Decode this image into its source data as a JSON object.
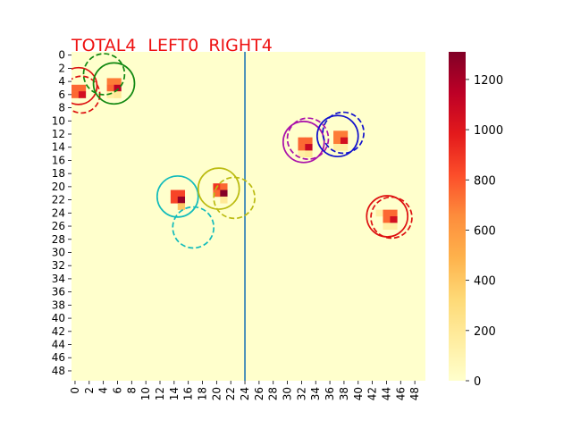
{
  "title": {
    "total": "TOTAL4",
    "left": "LEFT0",
    "right": "RIGHT4",
    "color": "#ee1111"
  },
  "chart_data": {
    "type": "heatmap",
    "grid_size": [
      50,
      50
    ],
    "colormap": "YlOrRd",
    "background_value": 0,
    "xlim": [
      0,
      49
    ],
    "ylim": [
      0,
      49
    ],
    "x_tick_labels": [
      "0",
      "2",
      "4",
      "6",
      "8",
      "10",
      "12",
      "14",
      "16",
      "18",
      "20",
      "22",
      "24",
      "26",
      "28",
      "30",
      "32",
      "34",
      "36",
      "38",
      "40",
      "42",
      "44",
      "46",
      "48"
    ],
    "y_tick_labels": [
      "0",
      "2",
      "4",
      "6",
      "8",
      "10",
      "12",
      "14",
      "16",
      "18",
      "20",
      "22",
      "24",
      "26",
      "28",
      "30",
      "32",
      "34",
      "36",
      "38",
      "40",
      "42",
      "44",
      "46",
      "48"
    ],
    "y_inverted": true,
    "colorbar": {
      "min": 0,
      "max": 1310,
      "ticks": [
        "0",
        "200",
        "400",
        "600",
        "800",
        "1000",
        "1200"
      ],
      "tick_values": [
        0,
        200,
        400,
        600,
        800,
        1000,
        1200
      ]
    },
    "divider_line": {
      "x": 24.5,
      "color": "#1f77b4"
    },
    "hot_cells": [
      {
        "x": 0,
        "y": 5,
        "v": 750
      },
      {
        "x": 1,
        "y": 5,
        "v": 750
      },
      {
        "x": 0,
        "y": 6,
        "v": 750
      },
      {
        "x": 1,
        "y": 6,
        "v": 1050
      },
      {
        "x": 5,
        "y": 4,
        "v": 700
      },
      {
        "x": 6,
        "y": 4,
        "v": 700
      },
      {
        "x": 5,
        "y": 5,
        "v": 750
      },
      {
        "x": 6,
        "y": 5,
        "v": 1150
      },
      {
        "x": 5,
        "y": 6,
        "v": 150
      },
      {
        "x": 6,
        "y": 6,
        "v": 200
      },
      {
        "x": 14,
        "y": 21,
        "v": 850
      },
      {
        "x": 15,
        "y": 21,
        "v": 850
      },
      {
        "x": 14,
        "y": 22,
        "v": 850
      },
      {
        "x": 15,
        "y": 22,
        "v": 1250
      },
      {
        "x": 15,
        "y": 23,
        "v": 400
      },
      {
        "x": 20,
        "y": 20,
        "v": 900
      },
      {
        "x": 21,
        "y": 20,
        "v": 750
      },
      {
        "x": 20,
        "y": 21,
        "v": 750
      },
      {
        "x": 21,
        "y": 21,
        "v": 1300
      },
      {
        "x": 21,
        "y": 22,
        "v": 200
      },
      {
        "x": 32,
        "y": 13,
        "v": 750
      },
      {
        "x": 33,
        "y": 13,
        "v": 750
      },
      {
        "x": 32,
        "y": 14,
        "v": 750
      },
      {
        "x": 33,
        "y": 14,
        "v": 1100
      },
      {
        "x": 32,
        "y": 15,
        "v": 150
      },
      {
        "x": 33,
        "y": 15,
        "v": 200
      },
      {
        "x": 37,
        "y": 12,
        "v": 700
      },
      {
        "x": 38,
        "y": 12,
        "v": 700
      },
      {
        "x": 37,
        "y": 13,
        "v": 700
      },
      {
        "x": 38,
        "y": 13,
        "v": 1050
      },
      {
        "x": 37,
        "y": 14,
        "v": 150
      },
      {
        "x": 38,
        "y": 14,
        "v": 150
      },
      {
        "x": 43,
        "y": 24,
        "v": 150
      },
      {
        "x": 44,
        "y": 24,
        "v": 750
      },
      {
        "x": 45,
        "y": 24,
        "v": 750
      },
      {
        "x": 44,
        "y": 25,
        "v": 750
      },
      {
        "x": 45,
        "y": 25,
        "v": 1050
      },
      {
        "x": 44,
        "y": 26,
        "v": 150
      },
      {
        "x": 45,
        "y": 26,
        "v": 150
      }
    ],
    "circles": [
      {
        "x": 1.0,
        "y": 5.2,
        "r": 2.6,
        "color": "#dd1111",
        "dashed": false
      },
      {
        "x": 1.4,
        "y": 6.5,
        "r": 2.6,
        "color": "#dd1111",
        "dashed": true
      },
      {
        "x": 6.0,
        "y": 4.8,
        "r": 2.9,
        "color": "#118811",
        "dashed": false
      },
      {
        "x": 4.6,
        "y": 3.4,
        "r": 2.9,
        "color": "#118811",
        "dashed": true
      },
      {
        "x": 15.0,
        "y": 22.0,
        "r": 2.9,
        "color": "#11bbbb",
        "dashed": false
      },
      {
        "x": 17.2,
        "y": 26.7,
        "r": 2.9,
        "color": "#11bbbb",
        "dashed": true
      },
      {
        "x": 20.8,
        "y": 20.8,
        "r": 2.9,
        "color": "#bbbb11",
        "dashed": false
      },
      {
        "x": 23.0,
        "y": 22.2,
        "r": 2.9,
        "color": "#bbbb11",
        "dashed": true
      },
      {
        "x": 32.8,
        "y": 13.7,
        "r": 2.9,
        "color": "#aa11aa",
        "dashed": false
      },
      {
        "x": 33.4,
        "y": 13.2,
        "r": 2.9,
        "color": "#aa11aa",
        "dashed": true
      },
      {
        "x": 37.6,
        "y": 12.8,
        "r": 2.9,
        "color": "#1111cc",
        "dashed": false
      },
      {
        "x": 38.4,
        "y": 12.3,
        "r": 2.9,
        "color": "#1111cc",
        "dashed": true
      },
      {
        "x": 44.6,
        "y": 25.0,
        "r": 2.9,
        "color": "#dd1111",
        "dashed": false
      },
      {
        "x": 45.2,
        "y": 25.2,
        "r": 2.9,
        "color": "#dd1111",
        "dashed": true
      }
    ]
  }
}
